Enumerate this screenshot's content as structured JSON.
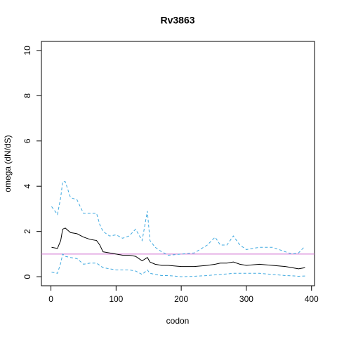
{
  "chart_data": {
    "type": "line",
    "title": "Rv3863",
    "x_label": "codon",
    "y_label": "omega (dN/dS)",
    "x": [
      1,
      10,
      15,
      18,
      22,
      30,
      40,
      50,
      60,
      70,
      75,
      80,
      90,
      100,
      110,
      120,
      130,
      140,
      148,
      152,
      160,
      170,
      180,
      200,
      220,
      240,
      252,
      260,
      270,
      280,
      290,
      300,
      320,
      340,
      360,
      370,
      380,
      390
    ],
    "series": [
      {
        "color": "#000000",
        "dashed": false,
        "values": [
          1.3,
          1.25,
          1.6,
          2.1,
          2.15,
          1.95,
          1.9,
          1.75,
          1.65,
          1.6,
          1.4,
          1.1,
          1.05,
          1.0,
          0.95,
          0.95,
          0.9,
          0.7,
          0.85,
          0.65,
          0.55,
          0.5,
          0.5,
          0.45,
          0.45,
          0.5,
          0.55,
          0.6,
          0.6,
          0.65,
          0.55,
          0.5,
          0.55,
          0.5,
          0.45,
          0.4,
          0.35,
          0.4
        ]
      },
      {
        "color": "#3fa9e0",
        "dashed": true,
        "values": [
          3.1,
          2.75,
          3.5,
          4.2,
          4.2,
          3.5,
          3.4,
          2.8,
          2.8,
          2.8,
          2.3,
          2.0,
          1.8,
          1.85,
          1.7,
          1.8,
          2.1,
          1.6,
          2.9,
          1.6,
          1.3,
          1.1,
          0.95,
          1.0,
          1.05,
          1.4,
          1.75,
          1.4,
          1.4,
          1.8,
          1.4,
          1.2,
          1.3,
          1.3,
          1.1,
          1.0,
          1.05,
          1.35
        ]
      },
      {
        "color": "#3fa9e0",
        "dashed": true,
        "values": [
          0.2,
          0.15,
          0.6,
          1.0,
          0.9,
          0.85,
          0.8,
          0.55,
          0.6,
          0.6,
          0.5,
          0.4,
          0.35,
          0.3,
          0.3,
          0.3,
          0.25,
          0.1,
          0.3,
          0.15,
          0.1,
          0.05,
          0.05,
          0.0,
          0.02,
          0.05,
          0.08,
          0.1,
          0.12,
          0.15,
          0.15,
          0.15,
          0.15,
          0.1,
          0.05,
          0.04,
          0.02,
          0.03
        ]
      }
    ],
    "hline": {
      "value": 1,
      "color": "#d070d0"
    },
    "xlim": [
      -14.6,
      404.6
    ],
    "xticks": [
      0,
      100,
      200,
      300,
      400
    ],
    "ylim": [
      -0.4,
      10.4
    ],
    "yticks": [
      0,
      2,
      4,
      6,
      8,
      10
    ]
  }
}
